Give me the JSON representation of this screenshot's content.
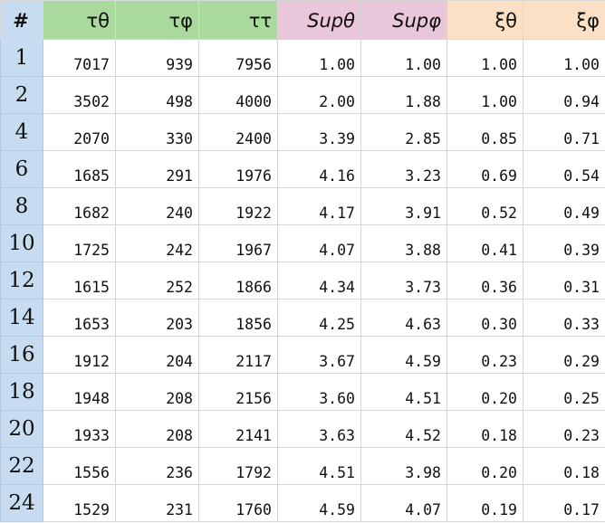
{
  "headers": {
    "hash": "#",
    "t_theta": "τθ",
    "t_phi": "τφ",
    "t_tau": "ττ",
    "sup_theta": "Supθ",
    "sup_phi": "Supφ",
    "xi_theta": "ξθ",
    "xi_phi": "ξφ"
  },
  "rows": [
    {
      "n": "1",
      "tt": "7017",
      "tp": "939",
      "ttot": "7956",
      "st": "1.00",
      "sp": "1.00",
      "xt": "1.00",
      "xp": "1.00"
    },
    {
      "n": "2",
      "tt": "3502",
      "tp": "498",
      "ttot": "4000",
      "st": "2.00",
      "sp": "1.88",
      "xt": "1.00",
      "xp": "0.94"
    },
    {
      "n": "4",
      "tt": "2070",
      "tp": "330",
      "ttot": "2400",
      "st": "3.39",
      "sp": "2.85",
      "xt": "0.85",
      "xp": "0.71"
    },
    {
      "n": "6",
      "tt": "1685",
      "tp": "291",
      "ttot": "1976",
      "st": "4.16",
      "sp": "3.23",
      "xt": "0.69",
      "xp": "0.54"
    },
    {
      "n": "8",
      "tt": "1682",
      "tp": "240",
      "ttot": "1922",
      "st": "4.17",
      "sp": "3.91",
      "xt": "0.52",
      "xp": "0.49"
    },
    {
      "n": "10",
      "tt": "1725",
      "tp": "242",
      "ttot": "1967",
      "st": "4.07",
      "sp": "3.88",
      "xt": "0.41",
      "xp": "0.39"
    },
    {
      "n": "12",
      "tt": "1615",
      "tp": "252",
      "ttot": "1866",
      "st": "4.34",
      "sp": "3.73",
      "xt": "0.36",
      "xp": "0.31"
    },
    {
      "n": "14",
      "tt": "1653",
      "tp": "203",
      "ttot": "1856",
      "st": "4.25",
      "sp": "4.63",
      "xt": "0.30",
      "xp": "0.33"
    },
    {
      "n": "16",
      "tt": "1912",
      "tp": "204",
      "ttot": "2117",
      "st": "3.67",
      "sp": "4.59",
      "xt": "0.23",
      "xp": "0.29"
    },
    {
      "n": "18",
      "tt": "1948",
      "tp": "208",
      "ttot": "2156",
      "st": "3.60",
      "sp": "4.51",
      "xt": "0.20",
      "xp": "0.25"
    },
    {
      "n": "20",
      "tt": "1933",
      "tp": "208",
      "ttot": "2141",
      "st": "3.63",
      "sp": "4.52",
      "xt": "0.18",
      "xp": "0.23"
    },
    {
      "n": "22",
      "tt": "1556",
      "tp": "236",
      "ttot": "1792",
      "st": "4.51",
      "sp": "3.98",
      "xt": "0.20",
      "xp": "0.18"
    },
    {
      "n": "24",
      "tt": "1529",
      "tp": "231",
      "ttot": "1760",
      "st": "4.59",
      "sp": "4.07",
      "xt": "0.19",
      "xp": "0.17"
    }
  ],
  "colors": {
    "row_header": "#c7dcf0",
    "time_group": "#a9d99d",
    "speedup_group": "#e9c6d9",
    "efficiency_group": "#fbe0c6",
    "grid": "#d6d6d6"
  }
}
